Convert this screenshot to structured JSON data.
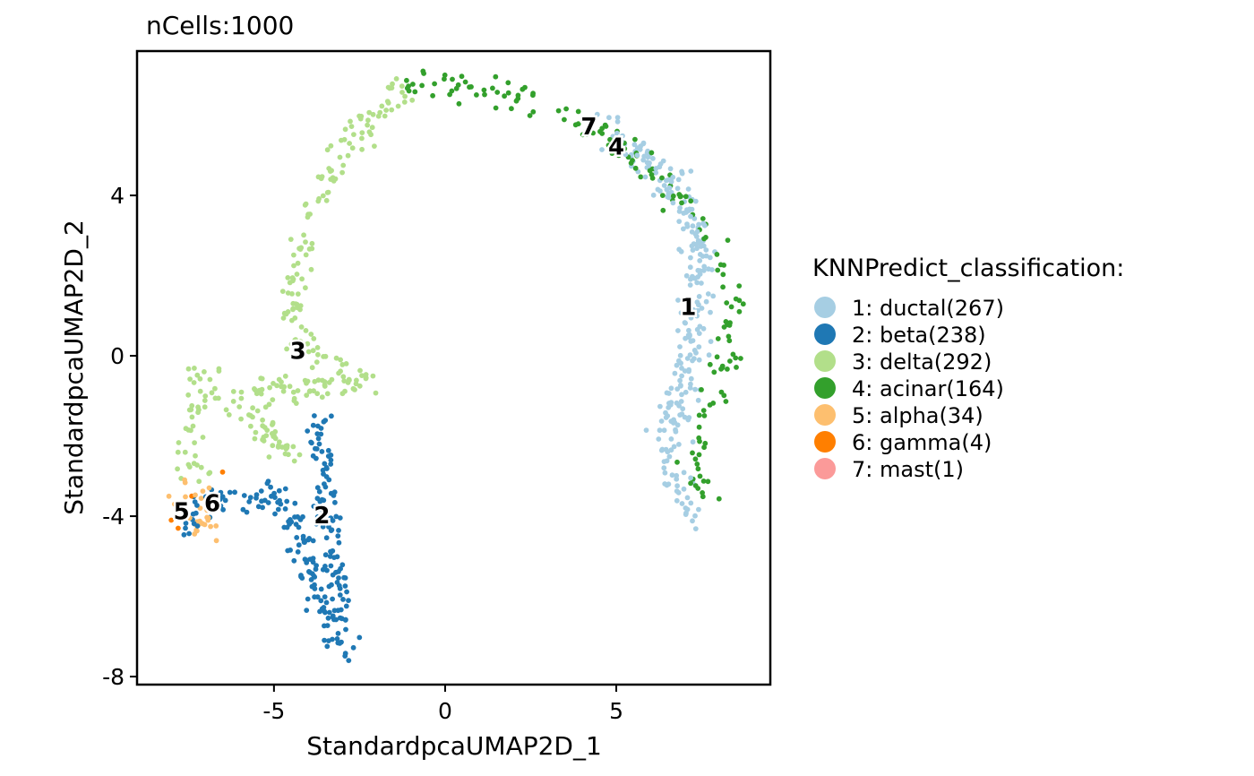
{
  "chart_data": {
    "type": "scatter",
    "title": "nCells:1000",
    "xlabel": "StandardpcaUMAP2D_1",
    "ylabel": "StandardpcaUMAP2D_2",
    "xlim": [
      -9.0,
      9.5
    ],
    "ylim": [
      -8.2,
      7.6
    ],
    "x_ticks": [
      -5,
      0,
      5
    ],
    "x_tick_labels": [
      "-5",
      "0",
      "5"
    ],
    "y_ticks": [
      -8,
      -4,
      0,
      4
    ],
    "y_tick_labels": [
      "-8",
      "-4",
      "0",
      "4"
    ],
    "grid": false,
    "legend": {
      "title": "KNNPredict_classification:",
      "placement": "right"
    },
    "series": [
      {
        "name": "1: ductal(267)",
        "id": "1",
        "color": "#A6CEE3",
        "count": 267,
        "cluster_label": {
          "text": "1",
          "x": 7.1,
          "y": 1.2
        },
        "path": [
          [
            4.8,
            5.5
          ],
          [
            5.8,
            5.0
          ],
          [
            6.6,
            4.3
          ],
          [
            7.2,
            3.4
          ],
          [
            7.5,
            2.0
          ],
          [
            7.2,
            0.5
          ],
          [
            6.8,
            -1.0
          ],
          [
            6.4,
            -2.3
          ],
          [
            6.8,
            -3.3
          ],
          [
            7.5,
            -4.2
          ]
        ],
        "spread": 0.45
      },
      {
        "name": "2: beta(238)",
        "id": "2",
        "color": "#1F78B4",
        "count": 238,
        "cluster_label": {
          "text": "2",
          "x": -3.6,
          "y": -4.0
        },
        "path": [
          [
            -3.6,
            -1.6
          ],
          [
            -3.6,
            -2.6
          ],
          [
            -3.5,
            -3.6
          ],
          [
            -3.3,
            -4.8
          ],
          [
            -3.1,
            -5.8
          ],
          [
            -3.0,
            -6.8
          ],
          [
            -3.0,
            -7.4
          ],
          [
            -4.8,
            -3.5
          ],
          [
            -5.8,
            -3.6
          ],
          [
            -6.8,
            -3.6
          ],
          [
            -7.8,
            -4.5
          ]
        ],
        "spread": 0.35
      },
      {
        "name": "3: delta(292)",
        "id": "3",
        "color": "#B2DF8A",
        "count": 292,
        "cluster_label": {
          "text": "3",
          "x": -4.3,
          "y": 0.1
        },
        "path": [
          [
            -1.0,
            6.6
          ],
          [
            -2.0,
            6.0
          ],
          [
            -3.0,
            5.2
          ],
          [
            -3.6,
            4.2
          ],
          [
            -4.1,
            3.2
          ],
          [
            -4.4,
            1.5
          ],
          [
            -4.5,
            0.3
          ],
          [
            -3.2,
            -0.1
          ],
          [
            -2.0,
            -0.7
          ],
          [
            -5.3,
            -0.8
          ],
          [
            -5.4,
            -2.0
          ],
          [
            -4.5,
            -2.4
          ],
          [
            -7.2,
            -0.4
          ],
          [
            -7.5,
            -1.5
          ],
          [
            -7.5,
            -2.8
          ],
          [
            -6.8,
            -3.0
          ]
        ],
        "spread": 0.35
      },
      {
        "name": "4: acinar(164)",
        "id": "4",
        "color": "#33A02C",
        "count": 164,
        "cluster_label": {
          "text": "4",
          "x": 5.0,
          "y": 5.2
        },
        "path": [
          [
            -1.3,
            6.6
          ],
          [
            0.0,
            6.8
          ],
          [
            1.5,
            6.6
          ],
          [
            3.0,
            6.2
          ],
          [
            4.5,
            5.6
          ],
          [
            6.2,
            4.6
          ],
          [
            7.8,
            3.0
          ],
          [
            8.4,
            1.5
          ],
          [
            8.2,
            0.0
          ],
          [
            7.6,
            -1.5
          ],
          [
            7.3,
            -2.8
          ],
          [
            7.6,
            -3.8
          ]
        ],
        "spread": 0.35
      },
      {
        "name": "5: alpha(34)",
        "id": "5",
        "color": "#FDBF6F",
        "count": 34,
        "cluster_label": {
          "text": "5",
          "x": -7.7,
          "y": -3.9
        },
        "path": [
          [
            -7.8,
            -3.8
          ],
          [
            -7.3,
            -3.3
          ],
          [
            -6.8,
            -4.0
          ],
          [
            -7.5,
            -4.5
          ]
        ],
        "spread": 0.45
      },
      {
        "name": "6: gamma(4)",
        "id": "6",
        "color": "#FF7F00",
        "count": 4,
        "cluster_label": {
          "text": "6",
          "x": -6.8,
          "y": -3.7
        },
        "points": [
          [
            -8.0,
            -4.1
          ],
          [
            -6.5,
            -2.9
          ],
          [
            -7.4,
            -3.5
          ],
          [
            -7.8,
            -4.3
          ]
        ]
      },
      {
        "name": "7: mast(1)",
        "id": "7",
        "color": "#FB9A99",
        "count": 1,
        "cluster_label": {
          "text": "7",
          "x": 4.2,
          "y": 5.7
        },
        "points": [
          [
            4.3,
            5.9
          ]
        ]
      }
    ]
  }
}
